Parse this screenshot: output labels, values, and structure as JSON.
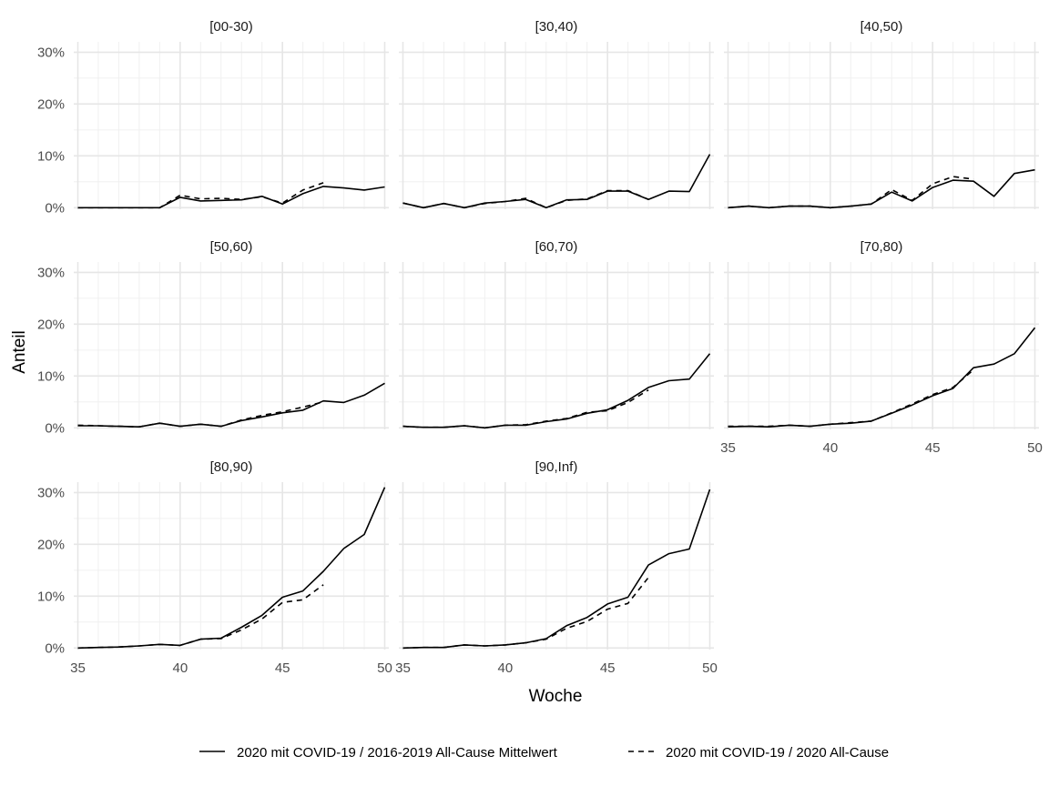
{
  "chart_data": {
    "type": "line",
    "facet": true,
    "xlabel": "Woche",
    "ylabel": "Anteil",
    "xlim": [
      34.8,
      50.2
    ],
    "ylim": [
      -0.3,
      32.0
    ],
    "x_ticks": [
      35,
      40,
      45,
      50
    ],
    "y_ticks": [
      0,
      10,
      20,
      30
    ],
    "y_tick_labels": [
      "0%",
      "10%",
      "20%",
      "30%"
    ],
    "legend_position": "bottom",
    "series_styles": [
      "solid",
      "dashed"
    ],
    "legend": [
      {
        "label": "2020 mit COVID-19 / 2016-2019 All-Cause Mittelwert",
        "style": "solid"
      },
      {
        "label": "2020 mit COVID-19 / 2020 All-Cause",
        "style": "dashed"
      }
    ],
    "panels": [
      {
        "title": "[00-30)",
        "series": [
          {
            "x": [
              35,
              36,
              37,
              38,
              39,
              40,
              41,
              42,
              43,
              44,
              45,
              46,
              47,
              48,
              49,
              50
            ],
            "y": [
              0,
              0,
              0,
              0,
              0,
              2.0,
              1.3,
              1.4,
              1.5,
              2.2,
              0.7,
              2.7,
              4.1,
              3.8,
              3.4,
              4.0
            ]
          },
          {
            "x": [
              35,
              36,
              37,
              38,
              39,
              40,
              41,
              42,
              43,
              44,
              45,
              46,
              47
            ],
            "y": [
              0,
              0,
              0,
              0,
              0,
              2.4,
              1.7,
              1.8,
              1.6,
              2.1,
              0.9,
              3.4,
              4.8
            ]
          }
        ]
      },
      {
        "title": "[30,40)",
        "series": [
          {
            "x": [
              35,
              36,
              37,
              38,
              39,
              40,
              41,
              42,
              43,
              44,
              45,
              46,
              47,
              48,
              49,
              50
            ],
            "y": [
              0.9,
              0,
              0.8,
              0,
              0.9,
              1.2,
              1.6,
              0,
              1.5,
              1.6,
              3.2,
              3.2,
              1.6,
              3.2,
              3.1,
              10.3
            ]
          },
          {
            "x": [
              35,
              36,
              37,
              38,
              39,
              40,
              41,
              42,
              43,
              44,
              45,
              46,
              47
            ],
            "y": [
              0.9,
              0,
              0.8,
              0,
              0.8,
              1.2,
              1.8,
              0,
              1.4,
              1.7,
              3.3,
              3.3,
              1.6
            ]
          }
        ]
      },
      {
        "title": "[40,50)",
        "series": [
          {
            "x": [
              35,
              36,
              37,
              38,
              39,
              40,
              41,
              42,
              43,
              44,
              45,
              46,
              47,
              48,
              49,
              50
            ],
            "y": [
              0,
              0.3,
              0,
              0.3,
              0.3,
              0,
              0.3,
              0.7,
              3.0,
              1.3,
              3.9,
              5.3,
              5.1,
              2.2,
              6.6,
              7.3
            ]
          },
          {
            "x": [
              35,
              36,
              37,
              38,
              39,
              40,
              41,
              42,
              43,
              44,
              45,
              46,
              47
            ],
            "y": [
              0,
              0.3,
              0,
              0.3,
              0.3,
              0,
              0.3,
              0.7,
              3.5,
              1.4,
              4.6,
              6.0,
              5.5
            ]
          }
        ]
      },
      {
        "title": "[50,60)",
        "series": [
          {
            "x": [
              35,
              36,
              37,
              38,
              39,
              40,
              41,
              42,
              43,
              44,
              45,
              46,
              47,
              48,
              49,
              50
            ],
            "y": [
              0.4,
              0.4,
              0.3,
              0.2,
              0.9,
              0.3,
              0.7,
              0.3,
              1.4,
              2.1,
              2.9,
              3.4,
              5.2,
              4.9,
              6.3,
              8.6
            ]
          },
          {
            "x": [
              35,
              36,
              37,
              38,
              39,
              40,
              41,
              42,
              43,
              44,
              45,
              46,
              47
            ],
            "y": [
              0.5,
              0.4,
              0.3,
              0.2,
              0.9,
              0.3,
              0.7,
              0.3,
              1.5,
              2.4,
              3.1,
              4.0,
              5.0
            ]
          }
        ]
      },
      {
        "title": "[60,70)",
        "series": [
          {
            "x": [
              35,
              36,
              37,
              38,
              39,
              40,
              41,
              42,
              43,
              44,
              45,
              46,
              47,
              48,
              49,
              50
            ],
            "y": [
              0.3,
              0.1,
              0.1,
              0.4,
              0,
              0.5,
              0.5,
              1.2,
              1.7,
              2.8,
              3.5,
              5.3,
              7.8,
              9.1,
              9.4,
              14.3
            ]
          },
          {
            "x": [
              35,
              36,
              37,
              38,
              39,
              40,
              41,
              42,
              43,
              44,
              45,
              46,
              47
            ],
            "y": [
              0.3,
              0.1,
              0.1,
              0.4,
              0,
              0.5,
              0.6,
              1.3,
              1.8,
              3.0,
              3.3,
              4.9,
              7.3
            ]
          }
        ]
      },
      {
        "title": "[70,80)",
        "series": [
          {
            "x": [
              35,
              36,
              37,
              38,
              39,
              40,
              41,
              42,
              43,
              44,
              45,
              46,
              47,
              48,
              49,
              50
            ],
            "y": [
              0.2,
              0.3,
              0.2,
              0.5,
              0.3,
              0.7,
              0.9,
              1.3,
              2.8,
              4.4,
              6.2,
              7.6,
              11.6,
              12.3,
              14.3,
              19.3
            ]
          },
          {
            "x": [
              35,
              36,
              37,
              38,
              39,
              40,
              41,
              42,
              43,
              44,
              45,
              46,
              47
            ],
            "y": [
              0.3,
              0.3,
              0.3,
              0.5,
              0.3,
              0.7,
              1.0,
              1.3,
              2.9,
              4.6,
              6.4,
              7.8,
              11.2
            ]
          }
        ]
      },
      {
        "title": "[80,90)",
        "series": [
          {
            "x": [
              35,
              36,
              37,
              38,
              39,
              40,
              41,
              42,
              43,
              44,
              45,
              46,
              47,
              48,
              49,
              50
            ],
            "y": [
              0,
              0.1,
              0.2,
              0.4,
              0.7,
              0.5,
              1.7,
              1.9,
              4.0,
              6.3,
              9.8,
              11.0,
              14.8,
              19.2,
              21.9,
              31.0
            ]
          },
          {
            "x": [
              35,
              36,
              37,
              38,
              39,
              40,
              41,
              42,
              43,
              44,
              45,
              46,
              47
            ],
            "y": [
              0,
              0.1,
              0.2,
              0.4,
              0.7,
              0.5,
              1.7,
              1.8,
              3.5,
              5.6,
              8.8,
              9.3,
              12.2
            ]
          }
        ]
      },
      {
        "title": "[90,Inf)",
        "series": [
          {
            "x": [
              35,
              36,
              37,
              38,
              39,
              40,
              41,
              42,
              43,
              44,
              45,
              46,
              47,
              48,
              49,
              50
            ],
            "y": [
              0,
              0.1,
              0.1,
              0.6,
              0.4,
              0.6,
              1.0,
              1.8,
              4.3,
              5.9,
              8.5,
              9.8,
              16.0,
              18.2,
              19.1,
              30.6
            ]
          },
          {
            "x": [
              35,
              36,
              37,
              38,
              39,
              40,
              41,
              42,
              43,
              44,
              45,
              46,
              47
            ],
            "y": [
              0,
              0.1,
              0.1,
              0.6,
              0.4,
              0.6,
              1.0,
              1.7,
              3.8,
              5.1,
              7.5,
              8.6,
              13.6
            ]
          }
        ]
      }
    ]
  }
}
